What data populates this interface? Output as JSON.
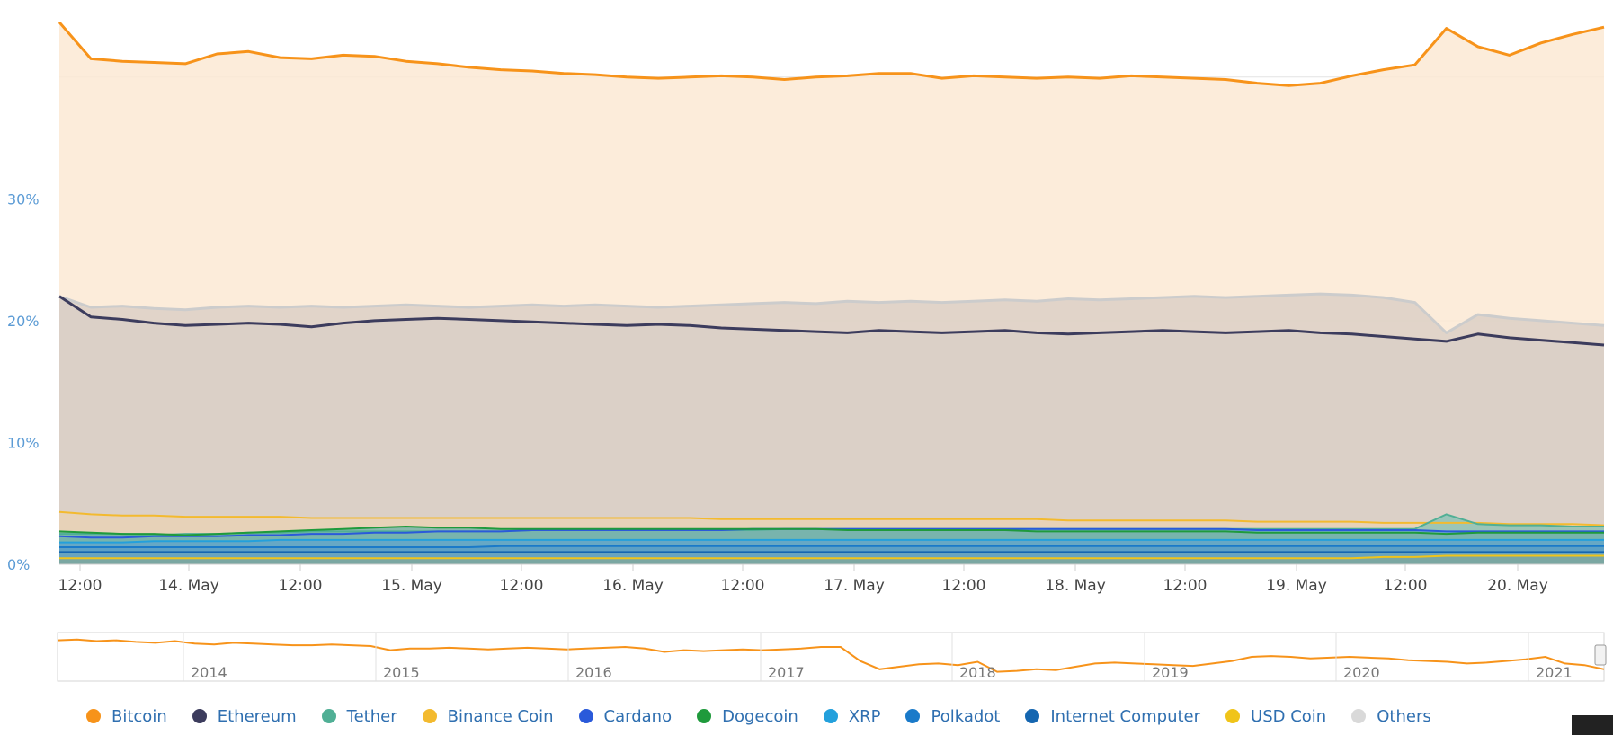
{
  "chart_data": {
    "type": "area",
    "ylim": [
      0,
      45
    ],
    "y_ticks": [
      "0%",
      "10%",
      "20%",
      "30%"
    ],
    "y_tick_values": [
      0,
      10,
      20,
      30
    ],
    "grid": true,
    "legend_position": "bottom",
    "x_tick_labels": [
      "12:00",
      "14. May",
      "12:00",
      "15. May",
      "12:00",
      "16. May",
      "12:00",
      "17. May",
      "12:00",
      "18. May",
      "12:00",
      "19. May",
      "12:00",
      "20. May"
    ],
    "series": [
      {
        "name": "Bitcoin",
        "color": "#f7931a",
        "fill": "#fce9d3",
        "values": [
          44.5,
          41.5,
          41.3,
          41.2,
          41.1,
          41.9,
          42.1,
          41.6,
          41.5,
          41.8,
          41.7,
          41.3,
          41.1,
          40.8,
          40.6,
          40.5,
          40.3,
          40.2,
          40.0,
          39.9,
          40.0,
          40.1,
          40.0,
          39.8,
          40.0,
          40.1,
          40.3,
          40.3,
          39.9,
          40.1,
          40.0,
          39.9,
          40.0,
          39.9,
          40.1,
          40.0,
          39.9,
          39.8,
          39.5,
          39.3,
          39.5,
          40.1,
          40.6,
          41.0,
          44.0,
          42.5,
          41.8,
          42.8,
          43.5,
          44.1
        ]
      },
      {
        "name": "Others",
        "color": "#cccccc",
        "fill": "#dcd0c6",
        "values": [
          22.0,
          21.1,
          21.2,
          21.0,
          20.9,
          21.1,
          21.2,
          21.1,
          21.2,
          21.1,
          21.2,
          21.3,
          21.2,
          21.1,
          21.2,
          21.3,
          21.2,
          21.3,
          21.2,
          21.1,
          21.2,
          21.3,
          21.4,
          21.5,
          21.4,
          21.6,
          21.5,
          21.6,
          21.5,
          21.6,
          21.7,
          21.6,
          21.8,
          21.7,
          21.8,
          21.9,
          22.0,
          21.9,
          22.0,
          22.1,
          22.2,
          22.1,
          21.9,
          21.5,
          19.0,
          20.5,
          20.2,
          20.0,
          19.8,
          19.6
        ]
      },
      {
        "name": "Ethereum",
        "color": "#3c3c5d",
        "fill": "#d9cfc7",
        "values": [
          22.0,
          20.3,
          20.1,
          19.8,
          19.6,
          19.7,
          19.8,
          19.7,
          19.5,
          19.8,
          20.0,
          20.1,
          20.2,
          20.1,
          20.0,
          19.9,
          19.8,
          19.7,
          19.6,
          19.7,
          19.6,
          19.4,
          19.3,
          19.2,
          19.1,
          19.0,
          19.2,
          19.1,
          19.0,
          19.1,
          19.2,
          19.0,
          18.9,
          19.0,
          19.1,
          19.2,
          19.1,
          19.0,
          19.1,
          19.2,
          19.0,
          18.9,
          18.7,
          18.5,
          18.3,
          18.9,
          18.6,
          18.4,
          18.2,
          18.0
        ]
      },
      {
        "name": "Binance Coin",
        "color": "#f3ba2f",
        "fill": "#e9d2b5",
        "values": [
          4.3,
          4.1,
          4.0,
          4.0,
          3.9,
          3.9,
          3.9,
          3.9,
          3.8,
          3.8,
          3.8,
          3.8,
          3.8,
          3.8,
          3.8,
          3.8,
          3.8,
          3.8,
          3.8,
          3.8,
          3.8,
          3.7,
          3.7,
          3.7,
          3.7,
          3.7,
          3.7,
          3.7,
          3.7,
          3.7,
          3.7,
          3.7,
          3.6,
          3.6,
          3.6,
          3.6,
          3.6,
          3.6,
          3.5,
          3.5,
          3.5,
          3.5,
          3.4,
          3.4,
          3.4,
          3.4,
          3.3,
          3.3,
          3.3,
          3.2
        ]
      },
      {
        "name": "Tether",
        "color": "#50af95",
        "fill": "#8ec3b6",
        "values": [
          2.5,
          2.5,
          2.5,
          2.4,
          2.5,
          2.5,
          2.6,
          2.6,
          2.7,
          2.7,
          2.7,
          2.7,
          2.7,
          2.7,
          2.7,
          2.8,
          2.8,
          2.8,
          2.8,
          2.8,
          2.8,
          2.8,
          2.8,
          2.9,
          2.9,
          2.9,
          2.9,
          2.9,
          2.9,
          2.9,
          2.9,
          2.9,
          2.9,
          2.9,
          2.9,
          2.9,
          2.9,
          2.9,
          2.9,
          2.9,
          2.9,
          2.9,
          2.9,
          2.9,
          4.1,
          3.3,
          3.2,
          3.2,
          3.1,
          3.1
        ]
      },
      {
        "name": "Cardano",
        "color": "#2a5ada",
        "fill": "#6fa9cf",
        "values": [
          2.3,
          2.2,
          2.2,
          2.3,
          2.3,
          2.3,
          2.4,
          2.4,
          2.5,
          2.5,
          2.6,
          2.6,
          2.7,
          2.7,
          2.7,
          2.8,
          2.8,
          2.8,
          2.8,
          2.8,
          2.8,
          2.8,
          2.9,
          2.9,
          2.9,
          2.9,
          2.9,
          2.9,
          2.9,
          2.9,
          2.9,
          2.9,
          2.9,
          2.9,
          2.9,
          2.9,
          2.9,
          2.9,
          2.8,
          2.8,
          2.8,
          2.8,
          2.8,
          2.8,
          2.7,
          2.7,
          2.7,
          2.7,
          2.7,
          2.7
        ]
      },
      {
        "name": "Dogecoin",
        "color": "#1f9a3c",
        "fill": "#79b5a8",
        "values": [
          2.7,
          2.6,
          2.5,
          2.5,
          2.4,
          2.5,
          2.6,
          2.7,
          2.8,
          2.9,
          3.0,
          3.1,
          3.0,
          3.0,
          2.9,
          2.9,
          2.9,
          2.9,
          2.9,
          2.9,
          2.9,
          2.9,
          2.9,
          2.9,
          2.9,
          2.8,
          2.8,
          2.8,
          2.8,
          2.8,
          2.8,
          2.7,
          2.7,
          2.7,
          2.7,
          2.7,
          2.7,
          2.7,
          2.6,
          2.6,
          2.6,
          2.6,
          2.6,
          2.6,
          2.5,
          2.6,
          2.6,
          2.6,
          2.6,
          2.6
        ]
      },
      {
        "name": "XRP",
        "color": "#23a0dc",
        "fill": "#63a6c9",
        "values": [
          1.8,
          1.8,
          1.8,
          1.9,
          1.9,
          1.9,
          1.9,
          2.0,
          2.0,
          2.0,
          2.0,
          2.0,
          2.0,
          2.0,
          2.0,
          2.0,
          2.0,
          2.0,
          2.0,
          2.0,
          2.0,
          2.0,
          2.0,
          2.0,
          2.0,
          2.0,
          2.0,
          2.0,
          2.0,
          2.0,
          2.0,
          2.0,
          2.0,
          2.0,
          2.0,
          2.0,
          2.0,
          2.0,
          2.0,
          2.0,
          2.0,
          2.0,
          2.0,
          2.0,
          2.0,
          2.0,
          2.0,
          2.0,
          2.0,
          2.0
        ]
      },
      {
        "name": "Polkadot",
        "color": "#1a7ac9",
        "fill": "#5b9fc4",
        "values": [
          1.4,
          1.4,
          1.4,
          1.4,
          1.4,
          1.4,
          1.4,
          1.4,
          1.4,
          1.4,
          1.4,
          1.4,
          1.4,
          1.4,
          1.5,
          1.5,
          1.5,
          1.5,
          1.5,
          1.5,
          1.5,
          1.5,
          1.5,
          1.5,
          1.5,
          1.5,
          1.5,
          1.5,
          1.5,
          1.5,
          1.5,
          1.5,
          1.5,
          1.5,
          1.5,
          1.5,
          1.5,
          1.5,
          1.5,
          1.5,
          1.5,
          1.5,
          1.5,
          1.5,
          1.5,
          1.5,
          1.5,
          1.5,
          1.5,
          1.5
        ]
      },
      {
        "name": "Internet Computer",
        "color": "#1566b0",
        "fill": "#6aa4bc",
        "values": [
          1.0,
          1.0,
          1.0,
          1.0,
          1.0,
          1.0,
          1.0,
          1.0,
          1.0,
          1.0,
          1.0,
          1.0,
          1.0,
          1.0,
          1.0,
          1.0,
          1.0,
          1.0,
          1.0,
          1.0,
          1.0,
          1.0,
          1.0,
          1.0,
          1.0,
          1.0,
          1.0,
          1.0,
          1.0,
          1.0,
          1.0,
          1.0,
          1.0,
          1.0,
          1.0,
          1.0,
          1.0,
          1.0,
          1.0,
          1.0,
          1.0,
          1.0,
          1.0,
          1.0,
          1.0,
          1.0,
          1.0,
          1.0,
          1.0,
          1.0
        ]
      },
      {
        "name": "USD Coin",
        "color": "#f0c419",
        "fill": "#7fa89e",
        "values": [
          0.5,
          0.5,
          0.5,
          0.5,
          0.5,
          0.5,
          0.5,
          0.5,
          0.5,
          0.5,
          0.5,
          0.5,
          0.5,
          0.5,
          0.5,
          0.5,
          0.5,
          0.5,
          0.5,
          0.5,
          0.5,
          0.5,
          0.5,
          0.5,
          0.5,
          0.5,
          0.5,
          0.5,
          0.5,
          0.5,
          0.5,
          0.5,
          0.5,
          0.5,
          0.5,
          0.5,
          0.5,
          0.5,
          0.5,
          0.5,
          0.5,
          0.5,
          0.6,
          0.6,
          0.7,
          0.7,
          0.7,
          0.7,
          0.7,
          0.7
        ]
      }
    ]
  },
  "navigator": {
    "year_labels": [
      "2014",
      "2015",
      "2016",
      "2017",
      "2018",
      "2019",
      "2020",
      "2021"
    ],
    "series_name": "Bitcoin",
    "color": "#f7931a",
    "values": [
      90,
      91,
      89,
      90,
      88,
      87,
      89,
      86,
      85,
      87,
      86,
      85,
      84,
      84,
      85,
      84,
      83,
      78,
      80,
      80,
      81,
      80,
      79,
      80,
      81,
      80,
      79,
      80,
      81,
      82,
      80,
      76,
      78,
      77,
      78,
      79,
      78,
      79,
      80,
      82,
      82,
      65,
      55,
      58,
      61,
      62,
      60,
      64,
      52,
      53,
      55,
      54,
      58,
      62,
      63,
      62,
      61,
      60,
      59,
      62,
      65,
      70,
      71,
      70,
      68,
      69,
      70,
      69,
      68,
      66,
      65,
      64,
      62,
      63,
      65,
      67,
      70,
      62,
      60,
      55
    ]
  },
  "legend": {
    "items": [
      {
        "label": "Bitcoin",
        "color": "#f7931a"
      },
      {
        "label": "Ethereum",
        "color": "#3c3c5d"
      },
      {
        "label": "Tether",
        "color": "#50af95"
      },
      {
        "label": "Binance Coin",
        "color": "#f3ba2f"
      },
      {
        "label": "Cardano",
        "color": "#2a5ada"
      },
      {
        "label": "Dogecoin",
        "color": "#1f9a3c"
      },
      {
        "label": "XRP",
        "color": "#23a0dc"
      },
      {
        "label": "Polkadot",
        "color": "#1a7ac9"
      },
      {
        "label": "Internet Computer",
        "color": "#1566b0"
      },
      {
        "label": "USD Coin",
        "color": "#f0c419"
      },
      {
        "label": "Others",
        "color": "#d9d9d9"
      }
    ]
  }
}
